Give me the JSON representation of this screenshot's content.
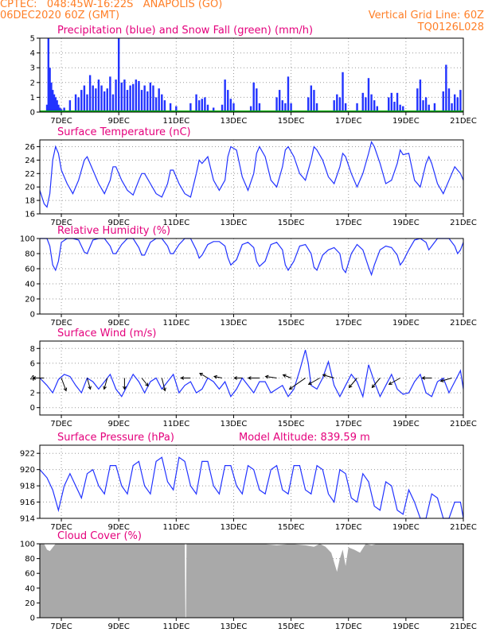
{
  "header": {
    "line1_left": "CPTEC:   048:45W-16:22S   ANAPOLIS (GO)",
    "line2_left": "06DEC2020 60Z (GMT)",
    "line2_right": "Vertical Grid Line: 60Z",
    "line3_right": "TQ0126L028"
  },
  "colors": {
    "header": "#ff7f27",
    "title": "#e4007c",
    "series": "#2233ff",
    "snow": "#00b000",
    "cloud": "#a9a9a9",
    "grid": "#9a9a9a"
  },
  "chart_data": [
    {
      "type": "bar",
      "title": "Precipitation (blue) and Snow Fall (green) (mm/h)",
      "yticks": [
        "0",
        "1",
        "2",
        "3",
        "4",
        "5"
      ],
      "ylim": [
        0,
        5
      ],
      "xticks": [
        "7DEC",
        "9DEC",
        "11DEC",
        "13DEC",
        "15DEC",
        "17DEC",
        "19DEC",
        "21DEC"
      ],
      "xlim_days": [
        6.25,
        21
      ],
      "series": [
        {
          "name": "blue",
          "x": [
            6.5,
            6.55,
            6.6,
            6.65,
            6.7,
            6.75,
            6.8,
            6.85,
            6.9,
            6.95,
            7.0,
            7.1,
            7.3,
            7.5,
            7.6,
            7.7,
            7.8,
            7.9,
            8.0,
            8.1,
            8.2,
            8.3,
            8.4,
            8.5,
            8.6,
            8.7,
            8.8,
            8.9,
            9.0,
            9.1,
            9.2,
            9.3,
            9.4,
            9.5,
            9.6,
            9.7,
            9.8,
            9.9,
            10.0,
            10.1,
            10.2,
            10.3,
            10.4,
            10.5,
            10.6,
            10.8,
            11.0,
            11.5,
            11.7,
            11.8,
            11.9,
            12.0,
            12.1,
            12.3,
            12.6,
            12.7,
            12.8,
            12.9,
            13.0,
            13.6,
            13.7,
            13.8,
            13.9,
            14.5,
            14.6,
            14.7,
            14.8,
            14.9,
            15.0,
            15.6,
            15.7,
            15.8,
            15.9,
            16.5,
            16.6,
            16.7,
            16.8,
            16.9,
            17.3,
            17.5,
            17.6,
            17.7,
            17.8,
            17.9,
            18.0,
            18.4,
            18.5,
            18.6,
            18.7,
            18.8,
            18.9,
            19.4,
            19.5,
            19.6,
            19.7,
            19.8,
            20.0,
            20.3,
            20.4,
            20.5,
            20.6,
            20.7,
            20.8,
            20.9
          ],
          "values": [
            0.5,
            5.0,
            3.0,
            2.0,
            1.5,
            1.2,
            1.0,
            0.8,
            0.5,
            0.3,
            0.2,
            0.3,
            0.8,
            1.2,
            1.0,
            1.5,
            1.8,
            1.2,
            2.5,
            1.8,
            1.6,
            2.2,
            1.8,
            1.4,
            1.6,
            2.4,
            1.2,
            2.2,
            5.0,
            2.0,
            2.2,
            1.5,
            1.8,
            1.9,
            2.2,
            2.1,
            1.5,
            1.8,
            1.4,
            2.0,
            1.8,
            1.0,
            1.6,
            1.2,
            0.8,
            0.6,
            0.4,
            0.6,
            1.2,
            0.8,
            0.9,
            1.0,
            0.5,
            0.3,
            0.5,
            2.2,
            1.5,
            0.9,
            0.6,
            0.4,
            2.0,
            1.6,
            0.6,
            1.0,
            1.5,
            0.8,
            0.6,
            2.4,
            0.6,
            1.0,
            1.8,
            1.5,
            0.6,
            0.8,
            1.2,
            1.0,
            2.7,
            0.6,
            0.6,
            1.3,
            1.0,
            2.3,
            1.2,
            0.8,
            0.4,
            1.0,
            1.3,
            0.7,
            1.3,
            0.5,
            0.4,
            1.6,
            2.2,
            0.8,
            1.0,
            0.5,
            0.6,
            1.4,
            3.2,
            1.6,
            0.6,
            1.2,
            1.0,
            1.5
          ]
        },
        {
          "name": "green",
          "x": [
            6.25,
            21
          ],
          "values": [
            0,
            0
          ]
        }
      ]
    },
    {
      "type": "line",
      "title": "Surface Temperature (nC)",
      "yticks": [
        "16",
        "18",
        "20",
        "22",
        "24",
        "26"
      ],
      "ylim": [
        16,
        27
      ],
      "xticks": [
        "7DEC",
        "9DEC",
        "11DEC",
        "13DEC",
        "15DEC",
        "17DEC",
        "19DEC",
        "21DEC"
      ],
      "xlim_days": [
        6.25,
        21
      ],
      "x": [
        6.25,
        6.4,
        6.5,
        6.6,
        6.7,
        6.8,
        6.9,
        7.0,
        7.2,
        7.4,
        7.6,
        7.8,
        7.9,
        8.1,
        8.3,
        8.5,
        8.7,
        8.8,
        8.9,
        9.1,
        9.3,
        9.5,
        9.7,
        9.8,
        9.9,
        10.1,
        10.3,
        10.5,
        10.7,
        10.8,
        10.9,
        11.1,
        11.3,
        11.5,
        11.7,
        11.8,
        11.9,
        12.1,
        12.3,
        12.5,
        12.7,
        12.8,
        12.9,
        13.1,
        13.3,
        13.5,
        13.7,
        13.8,
        13.9,
        14.1,
        14.3,
        14.5,
        14.7,
        14.8,
        14.9,
        15.1,
        15.3,
        15.5,
        15.7,
        15.8,
        15.9,
        16.1,
        16.3,
        16.5,
        16.7,
        16.8,
        16.9,
        17.1,
        17.3,
        17.5,
        17.7,
        17.8,
        17.9,
        18.1,
        18.3,
        18.5,
        18.7,
        18.8,
        18.9,
        19.1,
        19.3,
        19.5,
        19.7,
        19.8,
        19.9,
        20.1,
        20.3,
        20.5,
        20.7,
        20.8,
        20.9,
        21.0
      ],
      "values": [
        19.5,
        17.5,
        17.0,
        19.0,
        24.0,
        26.0,
        25.0,
        22.5,
        20.5,
        19.0,
        21.0,
        24.0,
        24.5,
        22.5,
        20.5,
        19.0,
        21.0,
        23.0,
        23.0,
        21.0,
        19.5,
        18.8,
        21.0,
        22.0,
        22.0,
        20.5,
        19.0,
        18.5,
        20.5,
        22.5,
        22.5,
        20.5,
        19.0,
        18.5,
        22.0,
        24.0,
        23.5,
        24.5,
        21.0,
        19.5,
        21.0,
        24.5,
        26.0,
        25.5,
        21.5,
        19.5,
        22.0,
        25.0,
        26.0,
        24.5,
        21.0,
        20.0,
        23.0,
        25.5,
        26.0,
        24.5,
        22.0,
        21.0,
        24.0,
        26.0,
        25.5,
        24.0,
        21.5,
        20.5,
        23.0,
        25.0,
        24.5,
        22.0,
        20.0,
        22.0,
        25.0,
        26.7,
        26.0,
        23.5,
        20.5,
        21.0,
        23.5,
        25.5,
        24.8,
        25.0,
        21.0,
        20.0,
        23.5,
        24.5,
        23.5,
        20.5,
        19.0,
        21.0,
        23.0,
        22.5,
        22.0,
        21.0
      ]
    },
    {
      "type": "line",
      "title": "Relative Humidity (%)",
      "yticks": [
        "0",
        "20",
        "40",
        "60",
        "80",
        "100"
      ],
      "ylim": [
        0,
        100
      ],
      "xticks": [
        "7DEC",
        "9DEC",
        "11DEC",
        "13DEC",
        "15DEC",
        "17DEC",
        "19DEC",
        "21DEC"
      ],
      "xlim_days": [
        6.25,
        21
      ],
      "x": [
        6.25,
        6.4,
        6.5,
        6.6,
        6.7,
        6.8,
        6.9,
        7.0,
        7.2,
        7.4,
        7.6,
        7.8,
        7.9,
        8.1,
        8.3,
        8.5,
        8.7,
        8.8,
        8.9,
        9.1,
        9.3,
        9.5,
        9.7,
        9.8,
        9.9,
        10.1,
        10.3,
        10.5,
        10.7,
        10.8,
        10.9,
        11.1,
        11.3,
        11.5,
        11.7,
        11.8,
        11.9,
        12.1,
        12.3,
        12.5,
        12.7,
        12.8,
        12.9,
        13.1,
        13.3,
        13.5,
        13.7,
        13.8,
        13.9,
        14.1,
        14.3,
        14.5,
        14.7,
        14.8,
        14.9,
        15.1,
        15.3,
        15.5,
        15.7,
        15.8,
        15.9,
        16.1,
        16.3,
        16.5,
        16.7,
        16.8,
        16.9,
        17.1,
        17.3,
        17.5,
        17.7,
        17.8,
        17.9,
        18.1,
        18.3,
        18.5,
        18.7,
        18.8,
        18.9,
        19.1,
        19.3,
        19.5,
        19.7,
        19.8,
        19.9,
        20.1,
        20.3,
        20.5,
        20.7,
        20.8,
        20.9,
        21.0
      ],
      "values": [
        100,
        100,
        100,
        90,
        65,
        58,
        70,
        95,
        100,
        100,
        98,
        82,
        80,
        98,
        100,
        100,
        90,
        80,
        80,
        92,
        100,
        100,
        88,
        78,
        78,
        95,
        100,
        100,
        90,
        80,
        80,
        92,
        100,
        100,
        85,
        74,
        78,
        92,
        96,
        96,
        90,
        75,
        65,
        72,
        92,
        95,
        88,
        70,
        63,
        70,
        92,
        95,
        85,
        65,
        58,
        70,
        90,
        92,
        80,
        62,
        58,
        78,
        85,
        88,
        80,
        60,
        55,
        80,
        92,
        85,
        62,
        52,
        65,
        85,
        90,
        88,
        78,
        65,
        70,
        85,
        98,
        100,
        95,
        85,
        90,
        100,
        100,
        100,
        90,
        80,
        85,
        95
      ]
    },
    {
      "type": "line",
      "title": "Surface Wind (m/s)",
      "yticks": [
        "0",
        "2",
        "4",
        "6",
        "8"
      ],
      "ylim": [
        -1,
        9
      ],
      "xticks": [
        "7DEC",
        "9DEC",
        "11DEC",
        "13DEC",
        "15DEC",
        "17DEC",
        "19DEC",
        "21DEC"
      ],
      "xlim_days": [
        6.25,
        21
      ],
      "x": [
        6.25,
        6.5,
        6.7,
        6.9,
        7.1,
        7.3,
        7.5,
        7.7,
        7.9,
        8.1,
        8.3,
        8.5,
        8.7,
        8.9,
        9.1,
        9.3,
        9.5,
        9.7,
        9.9,
        10.1,
        10.3,
        10.5,
        10.7,
        10.9,
        11.1,
        11.3,
        11.5,
        11.7,
        11.9,
        12.1,
        12.3,
        12.5,
        12.7,
        12.9,
        13.1,
        13.3,
        13.5,
        13.7,
        13.9,
        14.1,
        14.3,
        14.5,
        14.7,
        14.9,
        15.1,
        15.3,
        15.5,
        15.6,
        15.7,
        15.9,
        16.1,
        16.3,
        16.5,
        16.7,
        16.9,
        17.1,
        17.3,
        17.5,
        17.7,
        17.9,
        18.1,
        18.3,
        18.5,
        18.7,
        18.9,
        19.1,
        19.3,
        19.5,
        19.7,
        19.9,
        20.1,
        20.3,
        20.5,
        20.7,
        20.9,
        21.0
      ],
      "values": [
        4.0,
        3.0,
        2.0,
        3.8,
        4.5,
        4.2,
        3.0,
        2.0,
        4.0,
        3.5,
        2.5,
        3.5,
        4.5,
        2.5,
        1.5,
        3.0,
        4.5,
        3.5,
        2.0,
        3.5,
        4.0,
        2.5,
        3.5,
        4.5,
        2.0,
        3.0,
        3.5,
        2.0,
        2.5,
        4.0,
        3.5,
        2.5,
        3.5,
        1.5,
        2.5,
        4.0,
        3.0,
        2.0,
        3.5,
        3.5,
        2.0,
        2.5,
        3.0,
        1.5,
        2.5,
        5.0,
        7.8,
        6.0,
        3.0,
        2.5,
        4.0,
        6.2,
        3.0,
        1.5,
        3.0,
        4.5,
        3.5,
        1.5,
        5.8,
        3.5,
        1.5,
        3.0,
        4.5,
        2.5,
        1.8,
        2.0,
        3.5,
        4.5,
        2.0,
        1.5,
        3.5,
        4.0,
        2.0,
        3.5,
        5.0,
        2.5
      ]
    },
    {
      "type": "line",
      "title": "Surface Pressure (hPa)",
      "subtitle": "Model Altitude: 839.59 m",
      "yticks": [
        "914",
        "916",
        "918",
        "920",
        "922"
      ],
      "ylim": [
        914,
        923
      ],
      "xticks": [
        "7DEC",
        "9DEC",
        "11DEC",
        "13DEC",
        "15DEC",
        "17DEC",
        "19DEC",
        "21DEC"
      ],
      "xlim_days": [
        6.25,
        21
      ],
      "x": [
        6.25,
        6.5,
        6.7,
        6.9,
        7.1,
        7.3,
        7.5,
        7.7,
        7.9,
        8.1,
        8.3,
        8.5,
        8.7,
        8.9,
        9.1,
        9.3,
        9.5,
        9.7,
        9.9,
        10.1,
        10.3,
        10.5,
        10.7,
        10.9,
        11.1,
        11.3,
        11.5,
        11.7,
        11.9,
        12.1,
        12.3,
        12.5,
        12.7,
        12.9,
        13.1,
        13.3,
        13.5,
        13.7,
        13.9,
        14.1,
        14.3,
        14.5,
        14.7,
        14.9,
        15.1,
        15.3,
        15.5,
        15.7,
        15.9,
        16.1,
        16.3,
        16.5,
        16.7,
        16.9,
        17.1,
        17.3,
        17.5,
        17.7,
        17.9,
        18.1,
        18.3,
        18.5,
        18.7,
        18.9,
        19.1,
        19.3,
        19.5,
        19.7,
        19.9,
        20.1,
        20.3,
        20.5,
        20.7,
        20.9,
        21.0
      ],
      "values": [
        920.0,
        919.0,
        917.5,
        915.0,
        918.0,
        919.5,
        918.0,
        916.5,
        919.5,
        920.0,
        918.0,
        917.0,
        920.5,
        920.5,
        918.0,
        917.0,
        920.5,
        921.0,
        918.0,
        917.0,
        921.0,
        921.5,
        918.5,
        917.5,
        921.5,
        921.0,
        918.0,
        917.0,
        921.0,
        921.0,
        918.0,
        917.0,
        920.5,
        920.5,
        918.0,
        917.0,
        920.5,
        920.0,
        917.5,
        917.0,
        920.0,
        920.5,
        917.5,
        917.0,
        920.5,
        920.5,
        917.5,
        917.0,
        920.5,
        920.0,
        917.0,
        916.0,
        920.0,
        919.5,
        916.5,
        916.0,
        919.5,
        918.5,
        915.5,
        915.0,
        918.5,
        918.0,
        915.0,
        914.5,
        917.5,
        916.0,
        914.0,
        914.0,
        917.0,
        916.5,
        914.0,
        913.5,
        916.0,
        916.0,
        914.0
      ]
    },
    {
      "type": "area",
      "title": "Cloud Cover (%)",
      "yticks": [
        "0",
        "20",
        "40",
        "60",
        "80",
        "100"
      ],
      "ylim": [
        0,
        100
      ],
      "xticks": [
        "7DEC",
        "9DEC",
        "11DEC",
        "13DEC",
        "15DEC",
        "17DEC",
        "19DEC",
        "21DEC"
      ],
      "xlim_days": [
        6.25,
        21
      ],
      "x": [
        6.25,
        6.4,
        6.5,
        6.6,
        6.7,
        6.8,
        7.0,
        7.5,
        8.0,
        9.0,
        10.0,
        11.0,
        11.3,
        11.32,
        11.34,
        11.36,
        12.0,
        13.0,
        14.0,
        14.5,
        15.0,
        15.5,
        15.8,
        16.0,
        16.2,
        16.4,
        16.5,
        16.6,
        16.7,
        16.8,
        16.9,
        17.0,
        17.2,
        17.4,
        17.6,
        17.8,
        18.0,
        18.5,
        19.0,
        20.0,
        21.0
      ],
      "values": [
        100,
        100,
        92,
        90,
        95,
        100,
        100,
        100,
        100,
        100,
        100,
        100,
        100,
        0,
        0,
        100,
        100,
        100,
        100,
        98,
        100,
        98,
        96,
        100,
        96,
        88,
        75,
        62,
        80,
        92,
        70,
        95,
        92,
        88,
        100,
        98,
        100,
        100,
        100,
        100,
        100
      ]
    }
  ]
}
